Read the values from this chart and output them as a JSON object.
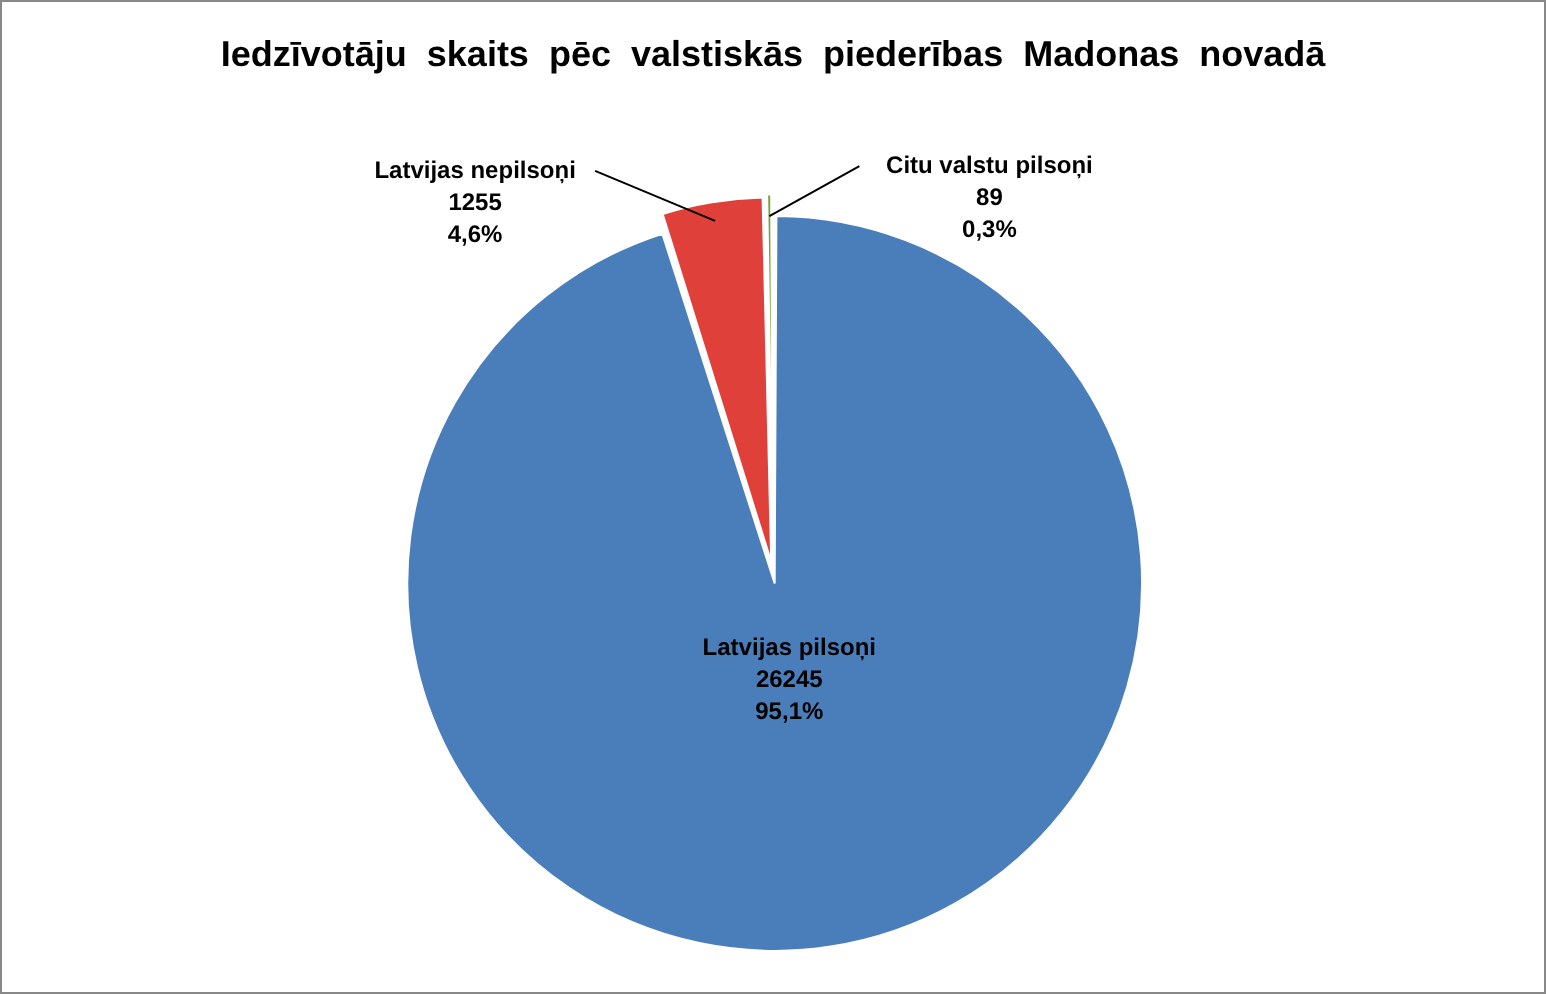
{
  "chart_data": {
    "type": "pie",
    "title": "Iedzīvotāju  skaits  pēc  valstiskās  piederības  Madonas  novadā",
    "categories": [
      "Latvijas pilsoņi",
      "Latvijas nepilsoņi",
      "Citu valstu pilsoņi"
    ],
    "values": [
      26245,
      1255,
      89
    ],
    "colors": [
      "#4a7ebb",
      "#e0403a",
      "#77a03a"
    ],
    "data_labels": true,
    "value_labels": [
      "26245\n95,1%",
      "1255\n4,6%",
      "89\n0,3%"
    ],
    "legend": false
  }
}
